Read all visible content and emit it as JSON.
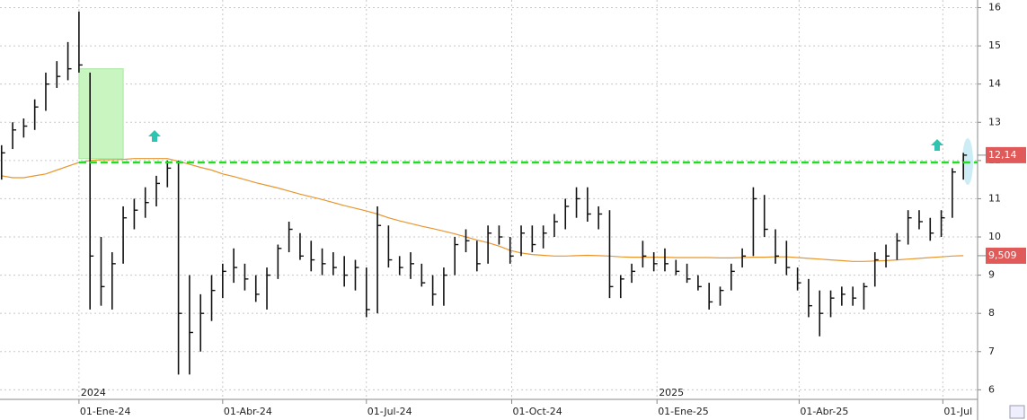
{
  "chart_data": {
    "type": "ohlc",
    "x": [
      "2023-11-13",
      "2023-11-20",
      "2023-11-27",
      "2023-12-04",
      "2023-12-11",
      "2023-12-18",
      "2023-12-25",
      "2024-01-01",
      "2024-01-08",
      "2024-01-15",
      "2024-01-22",
      "2024-01-29",
      "2024-02-05",
      "2024-02-12",
      "2024-02-19",
      "2024-02-26",
      "2024-03-04",
      "2024-03-11",
      "2024-03-18",
      "2024-03-25",
      "2024-04-01",
      "2024-04-08",
      "2024-04-15",
      "2024-04-22",
      "2024-04-29",
      "2024-05-06",
      "2024-05-13",
      "2024-05-20",
      "2024-05-27",
      "2024-06-03",
      "2024-06-10",
      "2024-06-17",
      "2024-06-24",
      "2024-07-01",
      "2024-07-08",
      "2024-07-15",
      "2024-07-22",
      "2024-07-29",
      "2024-08-05",
      "2024-08-12",
      "2024-08-19",
      "2024-08-26",
      "2024-09-02",
      "2024-09-09",
      "2024-09-16",
      "2024-09-23",
      "2024-09-30",
      "2024-10-07",
      "2024-10-14",
      "2024-10-21",
      "2024-10-28",
      "2024-11-04",
      "2024-11-11",
      "2024-11-18",
      "2024-11-25",
      "2024-12-02",
      "2024-12-09",
      "2024-12-16",
      "2024-12-23",
      "2024-12-30",
      "2025-01-06",
      "2025-01-13",
      "2025-01-20",
      "2025-01-27",
      "2025-02-03",
      "2025-02-10",
      "2025-02-17",
      "2025-02-24",
      "2025-03-03",
      "2025-03-10",
      "2025-03-17",
      "2025-03-24",
      "2025-03-31",
      "2025-04-07",
      "2025-04-14",
      "2025-04-21",
      "2025-04-28",
      "2025-05-05",
      "2025-05-12",
      "2025-05-19",
      "2025-05-26",
      "2025-06-02",
      "2025-06-09",
      "2025-06-16",
      "2025-06-23",
      "2025-06-30",
      "2025-07-07",
      "2025-07-14"
    ],
    "ohlc": {
      "color": "#111111",
      "high": [
        12.4,
        13.0,
        13.1,
        13.6,
        14.3,
        14.6,
        15.1,
        15.9,
        14.3,
        10.0,
        9.6,
        10.8,
        11.0,
        11.3,
        11.6,
        12.0,
        12.0,
        9.0,
        8.5,
        9.0,
        9.3,
        9.7,
        9.3,
        9.0,
        9.2,
        9.8,
        10.4,
        10.1,
        9.9,
        9.7,
        9.6,
        9.5,
        9.4,
        9.2,
        10.8,
        10.3,
        9.5,
        9.6,
        9.3,
        9.0,
        9.2,
        10.0,
        10.2,
        9.9,
        10.3,
        10.3,
        10.0,
        10.3,
        10.3,
        10.3,
        10.6,
        11.0,
        11.3,
        11.3,
        10.8,
        10.7,
        9.0,
        9.3,
        9.9,
        9.6,
        9.7,
        9.4,
        9.3,
        9.0,
        8.8,
        8.7,
        9.3,
        9.7,
        11.3,
        11.1,
        10.2,
        9.9,
        9.2,
        8.9,
        8.6,
        8.6,
        8.7,
        8.7,
        8.8,
        9.6,
        9.8,
        10.1,
        10.7,
        10.7,
        10.5,
        10.7,
        11.8,
        12.2
      ],
      "low": [
        11.5,
        12.3,
        12.6,
        12.8,
        13.3,
        13.9,
        14.1,
        14.3,
        8.1,
        8.2,
        8.1,
        9.3,
        10.2,
        10.5,
        10.8,
        11.3,
        6.4,
        6.4,
        7.0,
        7.8,
        8.4,
        8.8,
        8.6,
        8.3,
        8.1,
        8.9,
        9.6,
        9.4,
        9.1,
        9.0,
        9.0,
        8.7,
        8.6,
        7.9,
        8.0,
        9.2,
        9.0,
        8.9,
        8.7,
        8.2,
        8.2,
        9.0,
        9.6,
        9.1,
        9.3,
        9.8,
        9.3,
        9.5,
        9.6,
        9.7,
        10.0,
        10.2,
        10.5,
        10.4,
        10.2,
        8.4,
        8.4,
        8.8,
        9.2,
        9.1,
        9.1,
        9.0,
        8.8,
        8.6,
        8.1,
        8.2,
        8.6,
        9.2,
        9.5,
        10.0,
        9.3,
        9.0,
        8.6,
        7.9,
        7.4,
        7.9,
        8.2,
        8.2,
        8.1,
        8.7,
        9.2,
        9.4,
        9.8,
        10.2,
        9.9,
        10.0,
        10.5,
        11.5
      ],
      "close": [
        12.2,
        12.8,
        12.9,
        13.4,
        14.0,
        14.2,
        14.4,
        14.5,
        9.5,
        8.7,
        9.3,
        10.5,
        10.7,
        10.9,
        11.4,
        11.8,
        8.0,
        7.5,
        8.0,
        8.6,
        9.1,
        9.2,
        8.9,
        8.5,
        9.0,
        9.7,
        10.2,
        9.5,
        9.4,
        9.3,
        9.2,
        9.0,
        9.2,
        8.1,
        10.3,
        9.4,
        9.2,
        9.3,
        8.8,
        8.5,
        9.0,
        9.8,
        9.9,
        9.3,
        10.1,
        10.0,
        9.5,
        10.1,
        9.8,
        10.1,
        10.4,
        10.8,
        11.0,
        10.6,
        10.6,
        8.7,
        8.9,
        9.1,
        9.5,
        9.3,
        9.3,
        9.1,
        8.9,
        8.7,
        8.3,
        8.6,
        9.1,
        9.5,
        11.0,
        10.2,
        9.5,
        9.2,
        8.8,
        8.2,
        8.0,
        8.4,
        8.5,
        8.4,
        8.7,
        9.4,
        9.5,
        9.9,
        10.5,
        10.4,
        10.1,
        10.5,
        11.7,
        12.14
      ]
    },
    "series": [
      {
        "color": "#e8962e",
        "values": [
          11.6,
          11.55,
          11.55,
          11.6,
          11.65,
          11.75,
          11.85,
          11.95,
          12.0,
          12.02,
          12.02,
          12.03,
          12.05,
          12.05,
          12.05,
          12.05,
          11.98,
          11.9,
          11.82,
          11.75,
          11.65,
          11.58,
          11.5,
          11.42,
          11.35,
          11.28,
          11.2,
          11.12,
          11.05,
          10.98,
          10.9,
          10.82,
          10.75,
          10.68,
          10.6,
          10.5,
          10.42,
          10.35,
          10.28,
          10.22,
          10.15,
          10.08,
          10.0,
          9.92,
          9.85,
          9.76,
          9.65,
          9.58,
          9.54,
          9.52,
          9.5,
          9.5,
          9.51,
          9.52,
          9.51,
          9.5,
          9.48,
          9.47,
          9.47,
          9.47,
          9.47,
          9.46,
          9.46,
          9.46,
          9.46,
          9.45,
          9.45,
          9.46,
          9.47,
          9.47,
          9.48,
          9.48,
          9.46,
          9.44,
          9.42,
          9.4,
          9.38,
          9.36,
          9.36,
          9.37,
          9.38,
          9.4,
          9.42,
          9.44,
          9.46,
          9.48,
          9.5,
          9.509
        ]
      }
    ],
    "last_price": {
      "value": 12.14,
      "label": "12,14",
      "color": "#e05a5a"
    },
    "last_average": {
      "value": 9.509,
      "label": "9,509",
      "color": "#e05a5a"
    },
    "support_level": {
      "value": 11.95,
      "start": "2024-01-01",
      "color": "#22dd22"
    },
    "zone": {
      "x": [
        "2024-01-01",
        "2024-01-29"
      ],
      "y": [
        12.05,
        14.4
      ],
      "color": "#c8f5c0"
    },
    "xlim": [
      "2023-11-12",
      "2025-07-23"
    ],
    "ylim": [
      5.75,
      16.2
    ],
    "yticks": [
      6,
      7,
      8,
      9,
      10,
      11,
      12,
      13,
      14,
      15,
      16
    ],
    "xticks": [
      {
        "value": "2024-01-01",
        "label": "01-Ene-24"
      },
      {
        "value": "2024-04-01",
        "label": "01-Abr-24"
      },
      {
        "value": "2024-07-01",
        "label": "01-Jul-24"
      },
      {
        "value": "2024-10-01",
        "label": "01-Oct-24"
      },
      {
        "value": "2025-01-01",
        "label": "01-Ene-25"
      },
      {
        "value": "2025-04-01",
        "label": "01-Abr-25"
      },
      {
        "value": "2025-07-01",
        "label": "01-Jul"
      }
    ],
    "year_labels": [
      {
        "value": "2024-01-01",
        "label": "2024"
      },
      {
        "value": "2025-01-01",
        "label": "2025"
      }
    ],
    "grid": true
  }
}
